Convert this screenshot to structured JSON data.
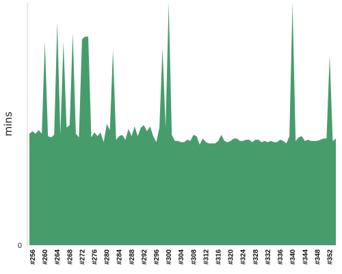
{
  "chart_data": {
    "type": "area",
    "title": "",
    "xlabel": "",
    "ylabel": "mins",
    "x_tick_labels": [
      "#256",
      "#260",
      "#264",
      "#268",
      "#272",
      "#276",
      "#280",
      "#284",
      "#288",
      "#292",
      "#296",
      "#300",
      "#304",
      "#308",
      "#312",
      "#316",
      "#320",
      "#324",
      "#328",
      "#332",
      "#336",
      "#340",
      "#344",
      "#348",
      "#352"
    ],
    "y_tick_labels": [
      "0"
    ],
    "ylim": [
      0,
      100
    ],
    "grid": false,
    "fill_color": "#479c6c",
    "series": [
      {
        "x_start": 255,
        "x_step": 1,
        "values": [
          46,
          47,
          46,
          47.5,
          46,
          84,
          45,
          44.5,
          45.5,
          92,
          45.5,
          84,
          48.5,
          49.5,
          87.5,
          46,
          44.5,
          85,
          86,
          86,
          44.5,
          46.5,
          45,
          46.5,
          42.5,
          50,
          47.5,
          80.5,
          43.5,
          45,
          45.5,
          43.5,
          48,
          45,
          49,
          45,
          48.5,
          49.5,
          47,
          49,
          45,
          42.5,
          48.5,
          81.5,
          48.5,
          100,
          45.5,
          43,
          43,
          42.5,
          42.5,
          43.5,
          43,
          45.5,
          45,
          41.5,
          44,
          42.5,
          42,
          42,
          42,
          43,
          45.5,
          43,
          42.5,
          43,
          44,
          44,
          43,
          43,
          43.5,
          43.5,
          42.5,
          43.5,
          43.5,
          42.5,
          43,
          42.5,
          43,
          42.5,
          42.5,
          43.5,
          43,
          42,
          45,
          100,
          43,
          44.5,
          45,
          43,
          43.5,
          43,
          43,
          43,
          43.5,
          44,
          44,
          78.5,
          43,
          44
        ]
      }
    ]
  }
}
